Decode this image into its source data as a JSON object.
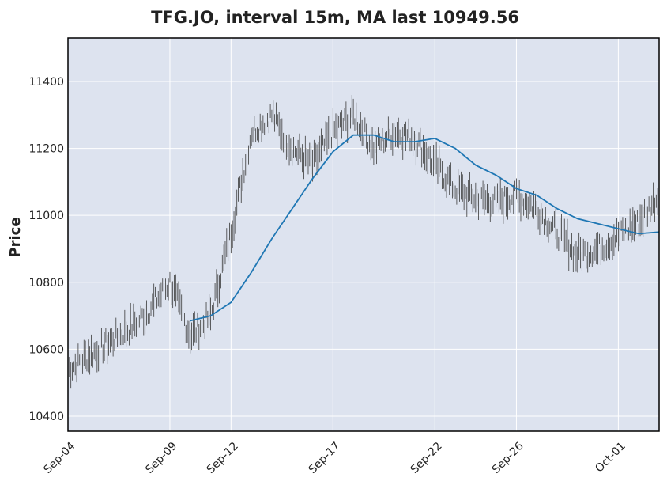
{
  "chart_data": {
    "type": "line",
    "title": "TFG.JO, interval 15m, MA last 10949.56",
    "xlabel": "",
    "ylabel": "Price",
    "ylim": [
      10355,
      11530
    ],
    "y_ticks": [
      10400,
      10600,
      10800,
      11000,
      11200,
      11400
    ],
    "x_ticks": [
      "Sep-04",
      "Sep-09",
      "Sep-12",
      "Sep-17",
      "Sep-22",
      "Sep-26",
      "Oct-01"
    ],
    "grid": true,
    "colors": {
      "plot_background": "#dde3ef",
      "grid": "#ffffff",
      "price": "#3a3a3a",
      "moving_average": "#1f77b4",
      "frame": "#000000"
    },
    "series": [
      {
        "role": "price",
        "type": "candlestick-bars",
        "x": [
          "Sep-04",
          "Sep-05",
          "Sep-06",
          "Sep-07",
          "Sep-08",
          "Sep-09",
          "Sep-10",
          "Sep-11",
          "Sep-12",
          "Sep-13",
          "Sep-14",
          "Sep-15",
          "Sep-16",
          "Sep-17",
          "Sep-18",
          "Sep-19",
          "Sep-20",
          "Sep-21",
          "Sep-22",
          "Sep-23",
          "Sep-24",
          "Sep-25",
          "Sep-26",
          "Sep-27",
          "Sep-28",
          "Sep-29",
          "Sep-30",
          "Oct-01",
          "Oct-02",
          "Oct-03"
        ],
        "values": [
          10540,
          10580,
          10620,
          10660,
          10720,
          10800,
          10640,
          10700,
          10950,
          11250,
          11300,
          11200,
          11150,
          11250,
          11300,
          11200,
          11250,
          11230,
          11150,
          11080,
          11050,
          11040,
          11060,
          11020,
          10950,
          10880,
          10900,
          10940,
          10980,
          11060
        ]
      },
      {
        "role": "moving_average",
        "type": "line",
        "x": [
          "Sep-10",
          "Sep-11",
          "Sep-12",
          "Sep-13",
          "Sep-14",
          "Sep-15",
          "Sep-16",
          "Sep-17",
          "Sep-18",
          "Sep-19",
          "Sep-20",
          "Sep-21",
          "Sep-22",
          "Sep-23",
          "Sep-24",
          "Sep-25",
          "Sep-26",
          "Sep-27",
          "Sep-28",
          "Sep-29",
          "Sep-30",
          "Oct-01",
          "Oct-02",
          "Oct-03"
        ],
        "values": [
          10685,
          10700,
          10740,
          10830,
          10930,
          11020,
          11110,
          11190,
          11240,
          11240,
          11220,
          11220,
          11230,
          11200,
          11150,
          11120,
          11080,
          11060,
          11020,
          10990,
          10975,
          10960,
          10945,
          10950
        ]
      }
    ]
  }
}
